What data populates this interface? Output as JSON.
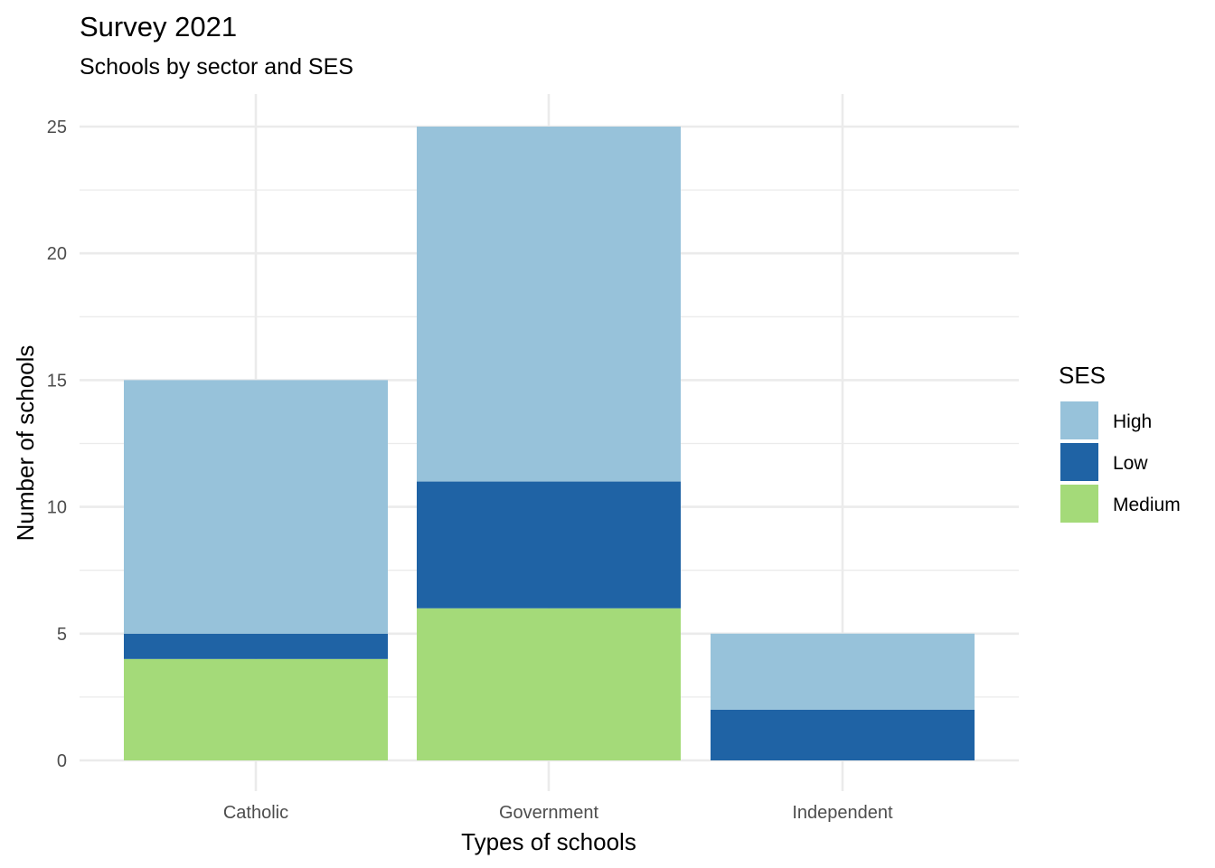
{
  "chart_data": {
    "type": "bar",
    "stacked": true,
    "title": "Survey 2021",
    "subtitle": "Schools by sector and SES",
    "xlabel": "Types of schools",
    "ylabel": "Number of schools",
    "categories": [
      "Catholic",
      "Government",
      "Independent"
    ],
    "series": [
      {
        "name": "Medium",
        "values": [
          4,
          6,
          0
        ],
        "color": "#a4da79"
      },
      {
        "name": "Low",
        "values": [
          1,
          5,
          2
        ],
        "color": "#1f63a5"
      },
      {
        "name": "High",
        "values": [
          10,
          14,
          3
        ],
        "color": "#97c2da"
      }
    ],
    "totals": [
      15,
      25,
      5
    ],
    "ylim": [
      0,
      26.25
    ],
    "yticks": [
      0,
      5,
      10,
      15,
      20,
      25
    ],
    "grid": true,
    "legend": {
      "title": "SES",
      "position": "right",
      "order": [
        "High",
        "Low",
        "Medium"
      ]
    },
    "colors": {
      "grid": "#ebebeb",
      "tick_text": "#4d4d4d",
      "background": "#ffffff"
    }
  }
}
